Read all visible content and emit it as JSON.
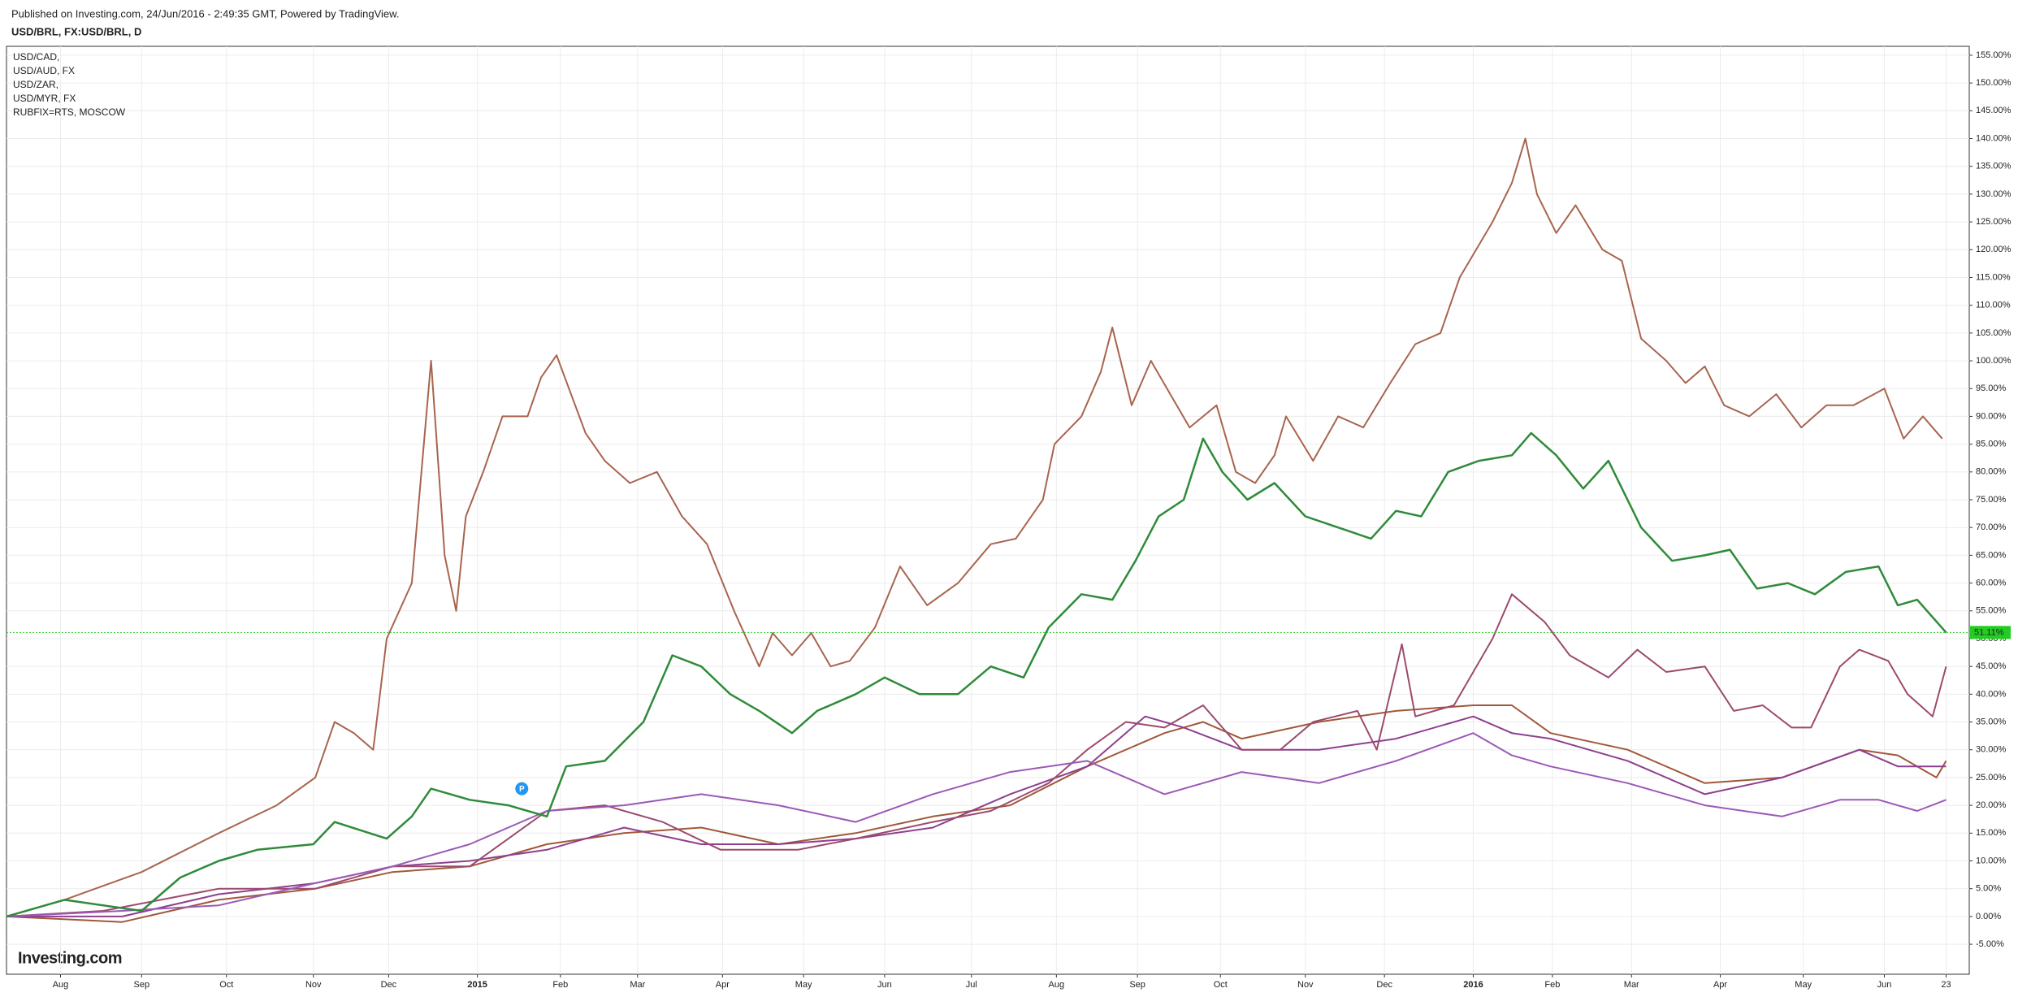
{
  "header": {
    "published": "Published on Investing.com, 24/Jun/2016 - 2:49:35 GMT, Powered by TradingView.",
    "symbol": "USD/BRL, FX:USD/BRL, D"
  },
  "logo": "Investing.com",
  "chart_data": {
    "type": "line",
    "xlim": [
      0,
      101.7
    ],
    "ylim": [
      -10.4,
      156.6
    ],
    "grid": true,
    "xticks": [
      {
        "value": 2.8,
        "label": "Aug"
      },
      {
        "value": 7.0,
        "label": "Sep"
      },
      {
        "value": 11.4,
        "label": "Oct"
      },
      {
        "value": 15.9,
        "label": "Nov"
      },
      {
        "value": 19.8,
        "label": "Dec"
      },
      {
        "value": 24.4,
        "label": "2015"
      },
      {
        "value": 28.7,
        "label": "Feb"
      },
      {
        "value": 32.7,
        "label": "Mar"
      },
      {
        "value": 37.1,
        "label": "Apr"
      },
      {
        "value": 41.3,
        "label": "May"
      },
      {
        "value": 45.5,
        "label": "Jun"
      },
      {
        "value": 50.0,
        "label": "Jul"
      },
      {
        "value": 54.4,
        "label": "Aug"
      },
      {
        "value": 58.6,
        "label": "Sep"
      },
      {
        "value": 62.9,
        "label": "Oct"
      },
      {
        "value": 67.3,
        "label": "Nov"
      },
      {
        "value": 71.4,
        "label": "Dec"
      },
      {
        "value": 76.0,
        "label": "2016"
      },
      {
        "value": 80.1,
        "label": "Feb"
      },
      {
        "value": 84.2,
        "label": "Mar"
      },
      {
        "value": 88.8,
        "label": "Apr"
      },
      {
        "value": 93.1,
        "label": "May"
      },
      {
        "value": 97.3,
        "label": "Jun"
      },
      {
        "value": 100.5,
        "label": "23"
      }
    ],
    "yticks": [
      {
        "value": -5,
        "label": "-5.00%"
      },
      {
        "value": 0,
        "label": "0.00%"
      },
      {
        "value": 5,
        "label": "5.00%"
      },
      {
        "value": 10,
        "label": "10.00%"
      },
      {
        "value": 15,
        "label": "15.00%"
      },
      {
        "value": 20,
        "label": "20.00%"
      },
      {
        "value": 25,
        "label": "25.00%"
      },
      {
        "value": 30,
        "label": "30.00%"
      },
      {
        "value": 35,
        "label": "35.00%"
      },
      {
        "value": 40,
        "label": "40.00%"
      },
      {
        "value": 45,
        "label": "45.00%"
      },
      {
        "value": 50,
        "label": "50.00%"
      },
      {
        "value": 55,
        "label": "55.00%"
      },
      {
        "value": 60,
        "label": "60.00%"
      },
      {
        "value": 65,
        "label": "65.00%"
      },
      {
        "value": 70,
        "label": "70.00%"
      },
      {
        "value": 75,
        "label": "75.00%"
      },
      {
        "value": 80,
        "label": "80.00%"
      },
      {
        "value": 85,
        "label": "85.00%"
      },
      {
        "value": 90,
        "label": "90.00%"
      },
      {
        "value": 95,
        "label": "95.00%"
      },
      {
        "value": 100,
        "label": "100.00%"
      },
      {
        "value": 105,
        "label": "105.00%"
      },
      {
        "value": 110,
        "label": "110.00%"
      },
      {
        "value": 115,
        "label": "115.00%"
      },
      {
        "value": 120,
        "label": "120.00%"
      },
      {
        "value": 125,
        "label": "125.00%"
      },
      {
        "value": 130,
        "label": "130.00%"
      },
      {
        "value": 135,
        "label": "135.00%"
      },
      {
        "value": 140,
        "label": "140.00%"
      },
      {
        "value": 145,
        "label": "145.00%"
      },
      {
        "value": 150,
        "label": "150.00%"
      },
      {
        "value": 155,
        "label": "155.00%"
      }
    ],
    "main_series": {
      "color": "#2e8b3a",
      "x": [
        0,
        3,
        7,
        9,
        11,
        13,
        15.9,
        17,
        19.7,
        21,
        22,
        24,
        26,
        28,
        29,
        31,
        33,
        34.5,
        36,
        37.5,
        39,
        40.7,
        42,
        44,
        45.5,
        47.3,
        49.3,
        51,
        52.7,
        54,
        55.7,
        57.3,
        58.5,
        59.7,
        61,
        62,
        63,
        64.3,
        65.7,
        67.3,
        69,
        70.7,
        72,
        73.3,
        74.7,
        76.3,
        78,
        79,
        80.3,
        81.7,
        83,
        84.7,
        86.3,
        88,
        89.3,
        90.7,
        92.3,
        93.7,
        95.3,
        97,
        98,
        99,
        100.5
      ],
      "values": [
        0,
        3,
        1,
        7,
        10,
        12,
        13,
        17,
        14,
        18,
        23,
        21,
        20,
        18,
        27,
        28,
        35,
        47,
        45,
        40,
        37,
        33,
        37,
        40,
        43,
        40,
        40,
        45,
        43,
        52,
        58,
        57,
        64,
        72,
        75,
        86,
        80,
        75,
        78,
        72,
        70,
        68,
        73,
        72,
        80,
        82,
        83,
        87,
        83,
        77,
        82,
        70,
        64,
        65,
        66,
        59,
        60,
        58,
        62,
        63,
        56,
        57,
        51.11
      ],
      "last_value_label": "51.11%",
      "label_color": "#22cc22"
    },
    "marker": {
      "label": "P",
      "x": 26.7,
      "y": 23,
      "color": "#2196f3"
    },
    "series": [
      {
        "name": "USD/CAD,",
        "color": "#a0583a",
        "x": [
          0,
          6,
          11,
          16,
          20,
          24,
          28,
          32,
          36,
          40,
          44,
          48,
          52,
          56,
          60,
          62,
          64,
          68,
          72,
          76,
          78,
          80,
          84,
          88,
          92,
          96,
          98,
          100,
          100.5
        ],
        "values": [
          0,
          -1,
          3,
          5,
          8,
          9,
          13,
          15,
          16,
          13,
          15,
          18,
          20,
          27,
          33,
          35,
          32,
          35,
          37,
          38,
          38,
          33,
          30,
          24,
          25,
          30,
          29,
          25,
          28
        ]
      },
      {
        "name": "USD/AUD, FX",
        "color": "#8e3f8e",
        "x": [
          0,
          6,
          11,
          16,
          20,
          24,
          28,
          32,
          36,
          40,
          44,
          48,
          52,
          56,
          59,
          61,
          64,
          68,
          72,
          76,
          78,
          80,
          84,
          88,
          92,
          96,
          98,
          100.5
        ],
        "values": [
          0,
          0,
          4,
          6,
          9,
          10,
          12,
          16,
          13,
          13,
          14,
          16,
          22,
          27,
          36,
          34,
          30,
          30,
          32,
          36,
          33,
          32,
          28,
          22,
          25,
          30,
          27,
          27
        ]
      },
      {
        "name": "USD/ZAR,",
        "color": "#9c4a6e",
        "x": [
          0,
          5,
          11,
          16,
          20,
          24,
          28,
          31,
          34,
          37,
          41,
          44,
          48,
          51,
          54,
          56,
          58,
          60,
          62,
          64,
          66,
          67.7,
          70,
          71,
          72.3,
          73,
          75,
          77,
          78,
          79.7,
          81,
          83,
          84.5,
          86,
          88,
          89.5,
          91,
          92.5,
          93.5,
          95,
          96,
          97.5,
          98.5,
          99.8,
          100.5
        ],
        "values": [
          0,
          1,
          5,
          5,
          9,
          9,
          19,
          20,
          17,
          12,
          12,
          14,
          17,
          19,
          24,
          30,
          35,
          34,
          38,
          30,
          30,
          35,
          37,
          30,
          49,
          36,
          38,
          50,
          58,
          53,
          47,
          43,
          48,
          44,
          45,
          37,
          38,
          34,
          34,
          45,
          48,
          46,
          40,
          36,
          45
        ]
      },
      {
        "name": "USD/MYR, FX",
        "color": "#9b59b6",
        "x": [
          0,
          6,
          11,
          16,
          20,
          24,
          28,
          32,
          36,
          40,
          44,
          48,
          52,
          56,
          58,
          60,
          64,
          68,
          72,
          76,
          78,
          80,
          84,
          88,
          92,
          95,
          97,
          99,
          100.5
        ],
        "values": [
          0,
          1,
          2,
          6,
          9,
          13,
          19,
          20,
          22,
          20,
          17,
          22,
          26,
          28,
          25,
          22,
          26,
          24,
          28,
          33,
          29,
          27,
          24,
          20,
          18,
          21,
          21,
          19,
          21
        ]
      },
      {
        "name": "RUBFIX=RTS, MOSCOW",
        "color": "#a8644e",
        "x": [
          0,
          3,
          7,
          11,
          14,
          16,
          17,
          18,
          19,
          19.7,
          21,
          22,
          22.7,
          23.3,
          23.8,
          24.7,
          25.7,
          27,
          27.7,
          28.5,
          30,
          31,
          32.3,
          33.7,
          35,
          36.3,
          37.7,
          39,
          39.7,
          40.7,
          41.7,
          42.7,
          43.7,
          45,
          46.3,
          47.7,
          49.3,
          51,
          52.3,
          53.7,
          54.3,
          55.7,
          56.7,
          57.3,
          58.3,
          59.3,
          60.3,
          61.3,
          62.7,
          63.7,
          64.7,
          65.7,
          66.3,
          67.7,
          69,
          70.3,
          71.7,
          73,
          74.3,
          75.3,
          77,
          78,
          78.7,
          79.3,
          80.3,
          81.3,
          82.7,
          83.7,
          84.7,
          86,
          87,
          88,
          89,
          90.3,
          91.7,
          93,
          94.3,
          95.7,
          97.3,
          98.3,
          99.3,
          100.3
        ],
        "values": [
          0,
          3,
          8,
          15,
          20,
          25,
          35,
          33,
          30,
          50,
          60,
          100,
          65,
          55,
          72,
          80,
          90,
          90,
          97,
          101,
          87,
          82,
          78,
          80,
          72,
          67,
          55,
          45,
          51,
          47,
          51,
          45,
          46,
          52,
          63,
          56,
          60,
          67,
          68,
          75,
          85,
          90,
          98,
          106,
          92,
          100,
          94,
          88,
          92,
          80,
          78,
          83,
          90,
          82,
          90,
          88,
          96,
          103,
          105,
          115,
          125,
          132,
          140,
          130,
          123,
          128,
          120,
          118,
          104,
          100,
          96,
          99,
          92,
          90,
          94,
          88,
          92,
          92,
          95,
          86,
          90,
          86
        ]
      }
    ]
  }
}
